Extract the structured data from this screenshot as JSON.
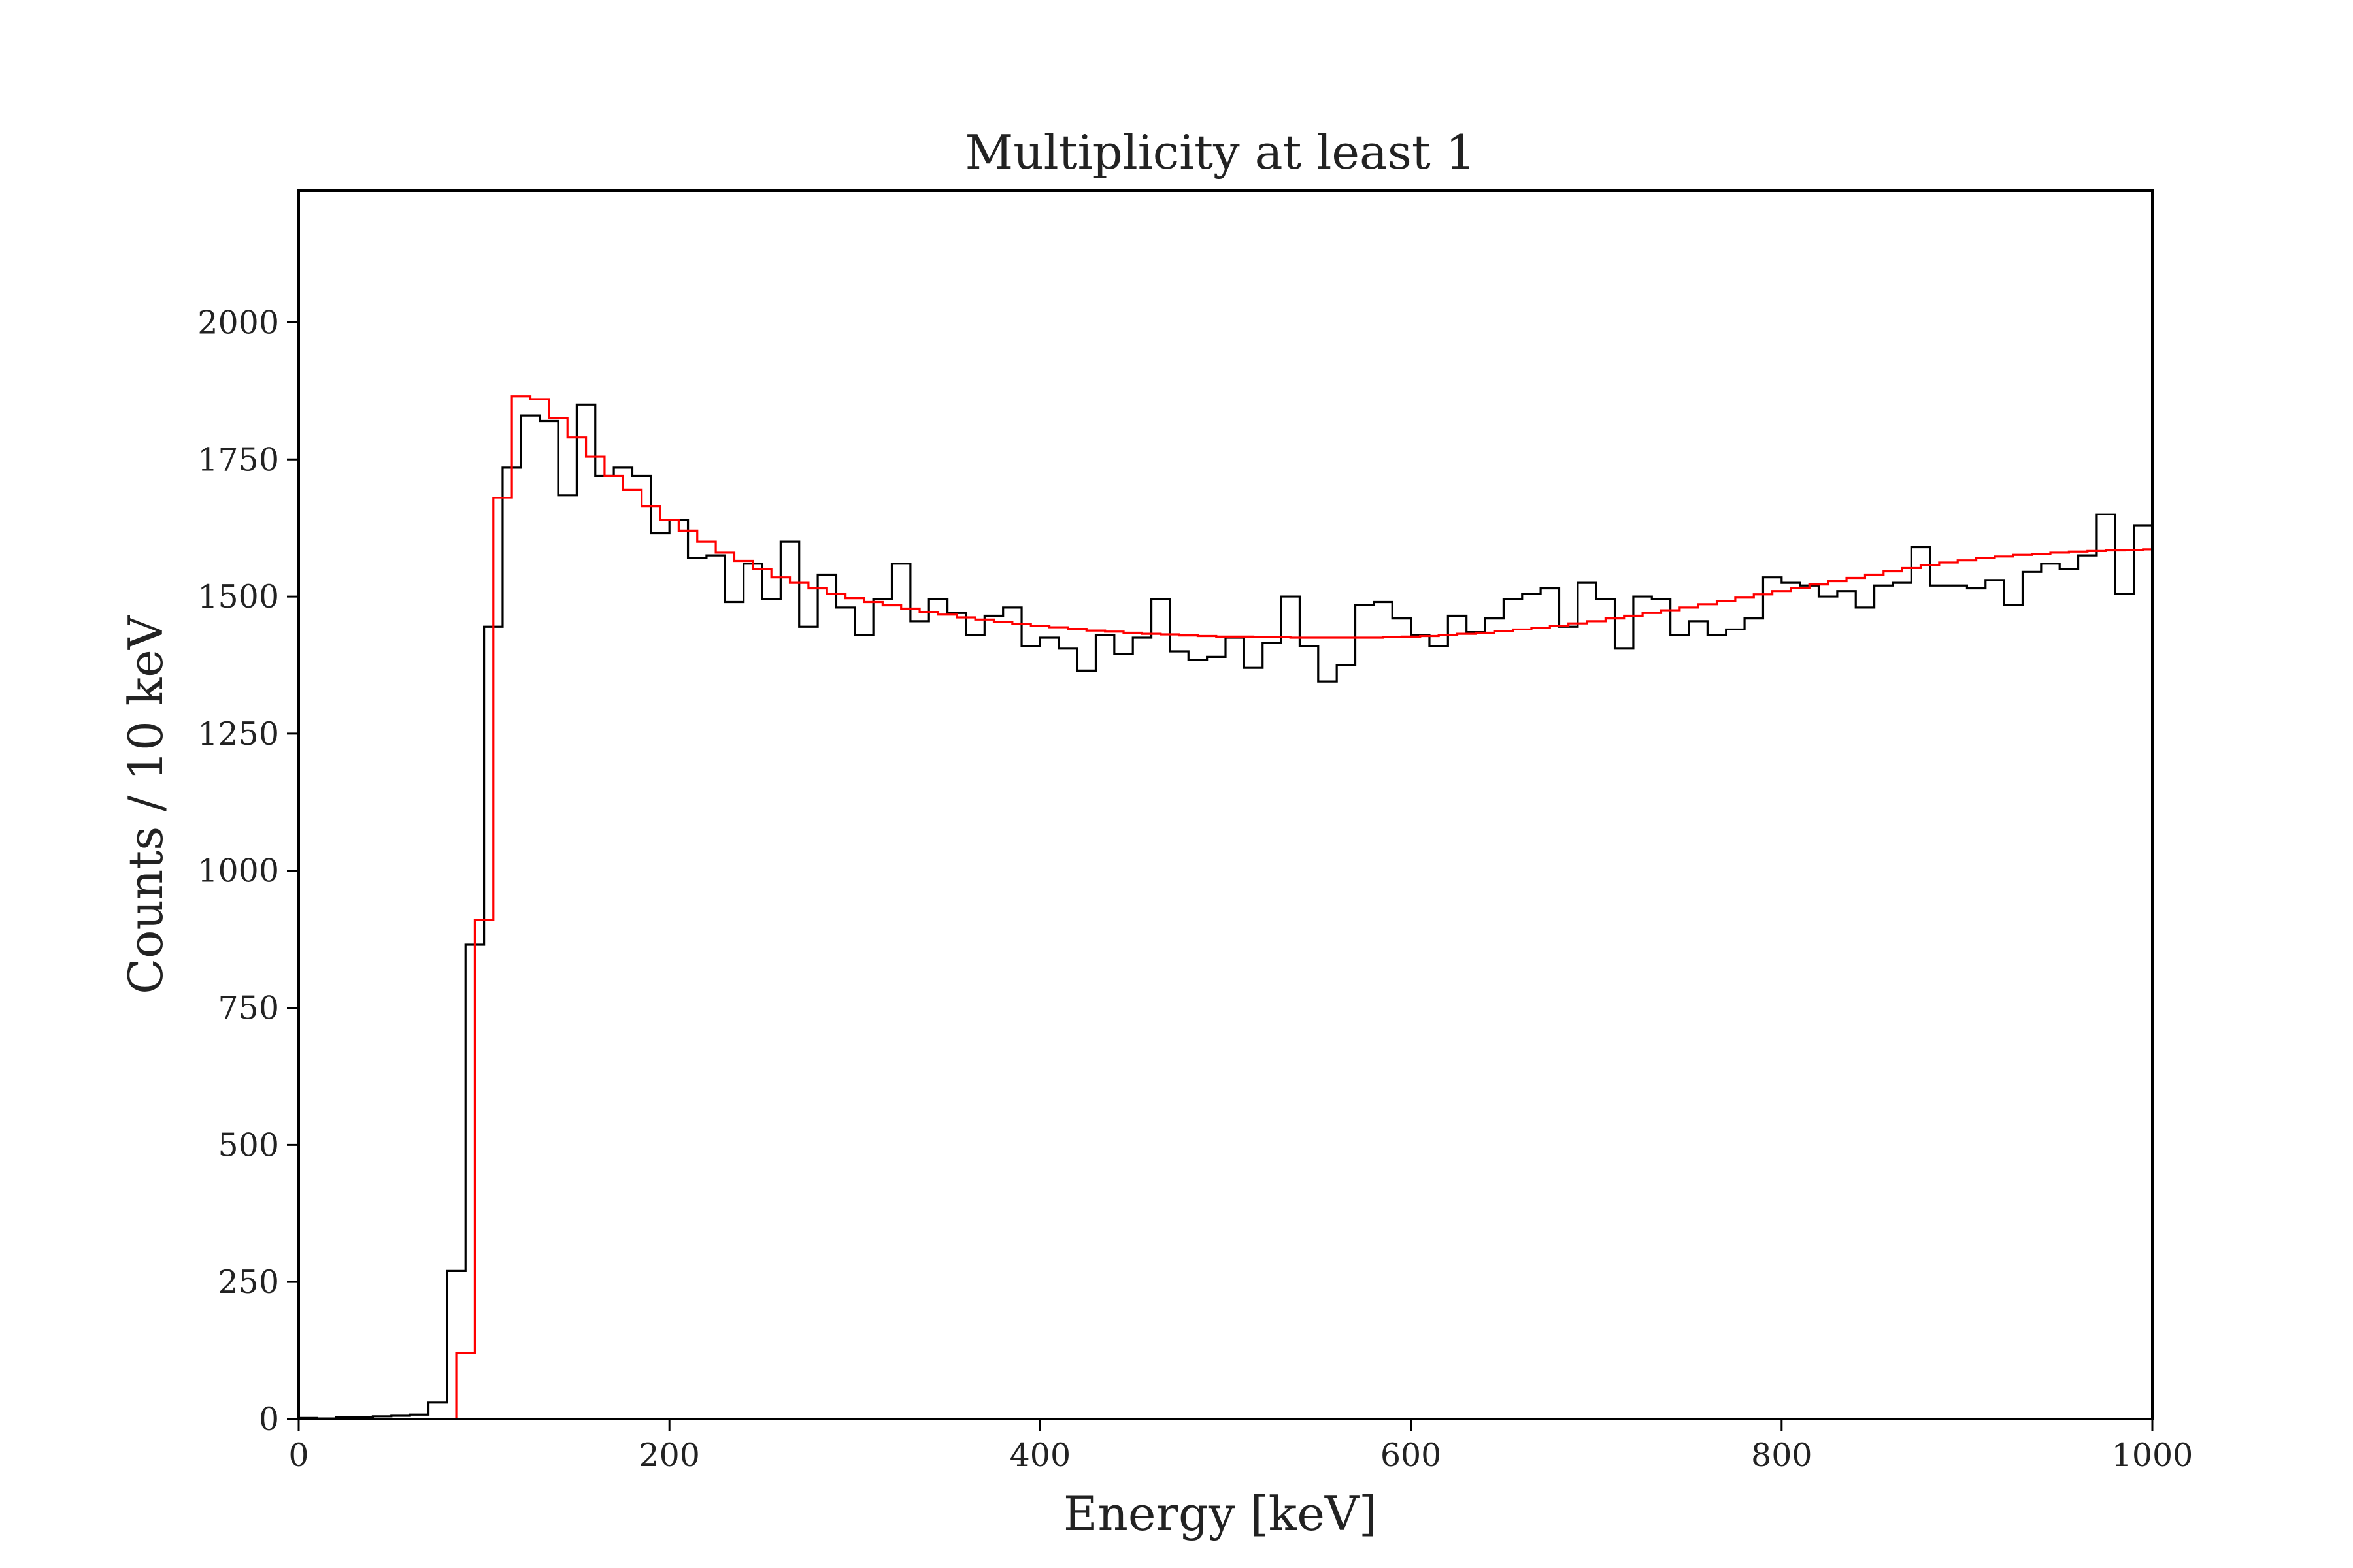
{
  "chart_data": {
    "type": "histogram",
    "title": "Multiplicity at least 1",
    "xlabel": "Energy [keV]",
    "ylabel": "Counts / 10 keV",
    "xlim": [
      0,
      1000
    ],
    "ylim": [
      0,
      2240
    ],
    "xticks": [
      0,
      200,
      400,
      600,
      800,
      1000
    ],
    "yticks": [
      0,
      250,
      500,
      750,
      1000,
      1250,
      1500,
      1750,
      2000
    ],
    "grid": false,
    "legend": "none",
    "bin_width": 10,
    "series": [
      {
        "color": "#000000",
        "bins_start": [
          0,
          10,
          20,
          30,
          40,
          50,
          60,
          70,
          80,
          90,
          100,
          110,
          120,
          130,
          140,
          150,
          160,
          170,
          180,
          190,
          200,
          210,
          220,
          230,
          240,
          250,
          260,
          270,
          280,
          290,
          300,
          310,
          320,
          330,
          340,
          350,
          360,
          370,
          380,
          390,
          400,
          410,
          420,
          430,
          440,
          450,
          460,
          470,
          480,
          490,
          500,
          510,
          520,
          530,
          540,
          550,
          560,
          570,
          580,
          590,
          600,
          610,
          620,
          630,
          640,
          650,
          660,
          670,
          680,
          690,
          700,
          710,
          720,
          730,
          740,
          750,
          760,
          770,
          780,
          790,
          800,
          810,
          820,
          830,
          840,
          850,
          860,
          870,
          880,
          890,
          900,
          910,
          920,
          930,
          940,
          950,
          960,
          970,
          980,
          990
        ],
        "counts": [
          2,
          1,
          4,
          3,
          5,
          6,
          8,
          30,
          270,
          865,
          1445,
          1735,
          1830,
          1820,
          1685,
          1850,
          1720,
          1735,
          1720,
          1615,
          1640,
          1570,
          1575,
          1490,
          1560,
          1495,
          1600,
          1445,
          1540,
          1480,
          1430,
          1495,
          1560,
          1455,
          1495,
          1470,
          1430,
          1465,
          1480,
          1410,
          1425,
          1405,
          1365,
          1430,
          1395,
          1425,
          1495,
          1400,
          1385,
          1390,
          1425,
          1370,
          1415,
          1500,
          1410,
          1345,
          1375,
          1485,
          1490,
          1460,
          1430,
          1410,
          1465,
          1435,
          1460,
          1495,
          1505,
          1515,
          1445,
          1525,
          1495,
          1405,
          1500,
          1495,
          1430,
          1455,
          1430,
          1440,
          1460,
          1535,
          1525,
          1520,
          1500,
          1510,
          1480,
          1520,
          1525,
          1590,
          1520,
          1520,
          1515,
          1530,
          1485,
          1545,
          1560,
          1550,
          1575,
          1650,
          1505,
          1630
        ]
      },
      {
        "color": "#ff0000",
        "bins_start": [
          85,
          95,
          105,
          115,
          125,
          135,
          145,
          155,
          165,
          175,
          185,
          195,
          205,
          215,
          225,
          235,
          245,
          255,
          265,
          275,
          285,
          295,
          305,
          315,
          325,
          335,
          345,
          355,
          365,
          375,
          385,
          395,
          405,
          415,
          425,
          435,
          445,
          455,
          465,
          475,
          485,
          495,
          505,
          515,
          525,
          535,
          545,
          555,
          565,
          575,
          585,
          595,
          605,
          615,
          625,
          635,
          645,
          655,
          665,
          675,
          685,
          695,
          705,
          715,
          725,
          735,
          745,
          755,
          765,
          775,
          785,
          795,
          805,
          815,
          825,
          835,
          845,
          855,
          865,
          875,
          885,
          895,
          905,
          915,
          925,
          935,
          945,
          955,
          965,
          975,
          985,
          995
        ],
        "counts": [
          120,
          910,
          1680,
          1865,
          1860,
          1825,
          1790,
          1755,
          1720,
          1695,
          1665,
          1640,
          1620,
          1600,
          1580,
          1565,
          1550,
          1535,
          1525,
          1515,
          1505,
          1497,
          1490,
          1484,
          1478,
          1472,
          1467,
          1462,
          1458,
          1454,
          1450,
          1447,
          1444,
          1441,
          1438,
          1436,
          1434,
          1432,
          1431,
          1429,
          1428,
          1427,
          1427,
          1426,
          1426,
          1425,
          1425,
          1425,
          1425,
          1425,
          1426,
          1427,
          1428,
          1430,
          1432,
          1434,
          1437,
          1440,
          1443,
          1447,
          1451,
          1455,
          1460,
          1465,
          1470,
          1475,
          1480,
          1486,
          1492,
          1498,
          1504,
          1510,
          1516,
          1522,
          1528,
          1534,
          1540,
          1546,
          1552,
          1557,
          1562,
          1566,
          1570,
          1573,
          1576,
          1578,
          1580,
          1582,
          1583,
          1584,
          1585,
          1586
        ]
      }
    ]
  }
}
